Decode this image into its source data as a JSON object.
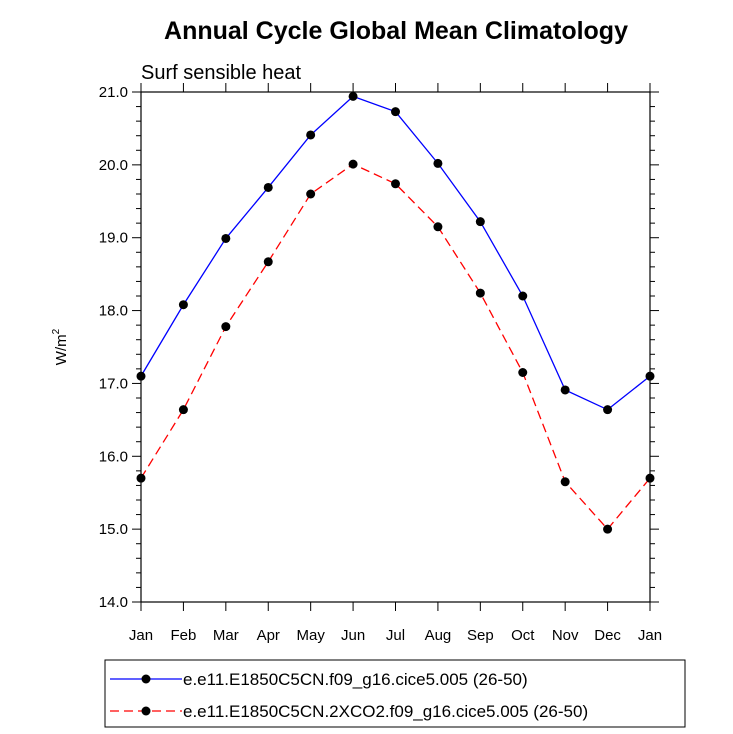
{
  "chart_data": {
    "type": "line",
    "title": "Annual Cycle Global Mean Climatology",
    "subtitle": "Surf sensible heat",
    "ylabel": "W/m",
    "ylabel_superscript": "2",
    "xlabel": "",
    "categories": [
      "Jan",
      "Feb",
      "Mar",
      "Apr",
      "May",
      "Jun",
      "Jul",
      "Aug",
      "Sep",
      "Oct",
      "Nov",
      "Dec",
      "Jan"
    ],
    "ylim": [
      14.0,
      21.0
    ],
    "yticks": [
      "14.0",
      "15.0",
      "16.0",
      "17.0",
      "18.0",
      "19.0",
      "20.0",
      "21.0"
    ],
    "grid": false,
    "legend_position": "bottom",
    "series": [
      {
        "name": "e.e11.E1850C5CN.f09_g16.cice5.005 (26-50)",
        "color": "#0000ff",
        "line_style": "solid",
        "marker": "filled-circle",
        "values": [
          17.1,
          18.08,
          18.99,
          19.69,
          20.41,
          20.94,
          20.73,
          20.02,
          19.22,
          18.2,
          16.91,
          16.64,
          17.1
        ]
      },
      {
        "name": "e.e11.E1850C5CN.2XCO2.f09_g16.cice5.005 (26-50)",
        "color": "#ff0000",
        "line_style": "dashed",
        "marker": "filled-circle",
        "values": [
          15.7,
          16.64,
          17.78,
          18.67,
          19.6,
          20.01,
          19.74,
          19.15,
          18.24,
          17.15,
          15.65,
          15.0,
          15.7
        ]
      }
    ]
  }
}
